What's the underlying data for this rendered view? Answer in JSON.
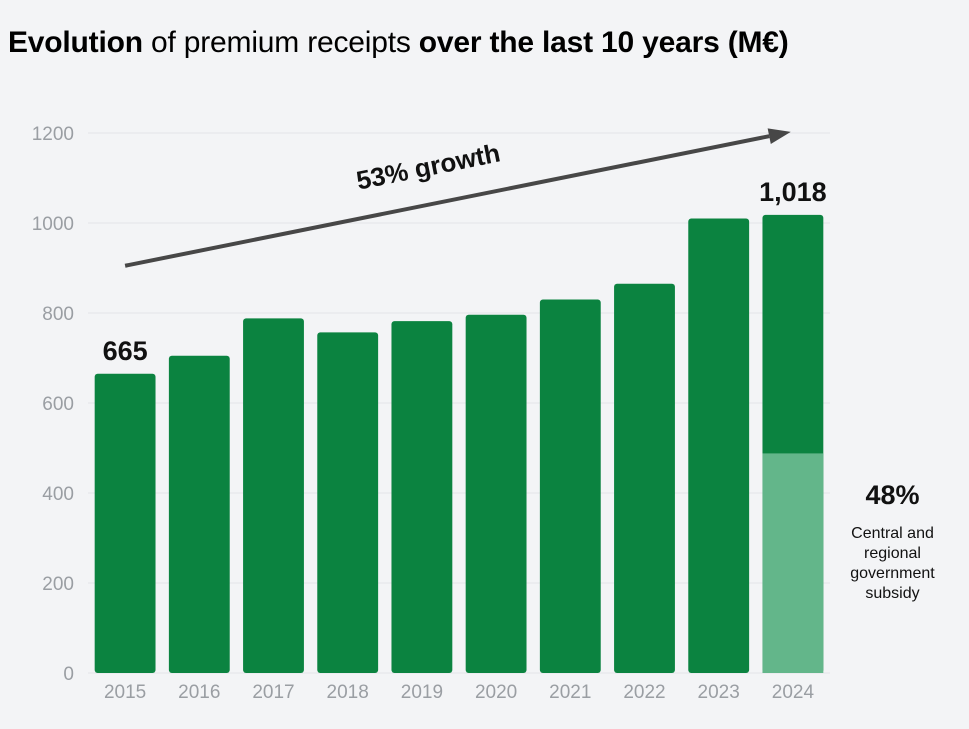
{
  "title": {
    "part1": "Evolution",
    "part2": "of",
    "part3": "premium receipts",
    "part4": "over the last 10 years (M€)"
  },
  "chart_data": {
    "type": "bar",
    "title": "Evolution of premium receipts over the last 10 years (M€)",
    "categories": [
      "2015",
      "2016",
      "2017",
      "2018",
      "2019",
      "2020",
      "2021",
      "2022",
      "2023",
      "2024"
    ],
    "values": [
      665,
      705,
      788,
      757,
      782,
      796,
      830,
      865,
      1010,
      1018
    ],
    "stacked_segment": {
      "category": "2024",
      "value": 488
    },
    "ylim": [
      0,
      1200
    ],
    "yticks": [
      0,
      200,
      400,
      600,
      800,
      1000,
      1200
    ],
    "grid": true,
    "data_labels": [
      {
        "category": "2015",
        "text": "665"
      },
      {
        "category": "2024",
        "text": "1,018"
      }
    ],
    "annotation": {
      "text": "53% growth",
      "from_value": 905,
      "to_value": 1200
    },
    "colors": {
      "bar": "#0b8340",
      "subsidy": "#63b68a",
      "arrow": "#474747",
      "grid": "#e3e5e8"
    }
  },
  "side_note": {
    "percent": "48%",
    "line1": "Central and",
    "line2": "regional",
    "line3": "government",
    "line4": "subsidy"
  }
}
